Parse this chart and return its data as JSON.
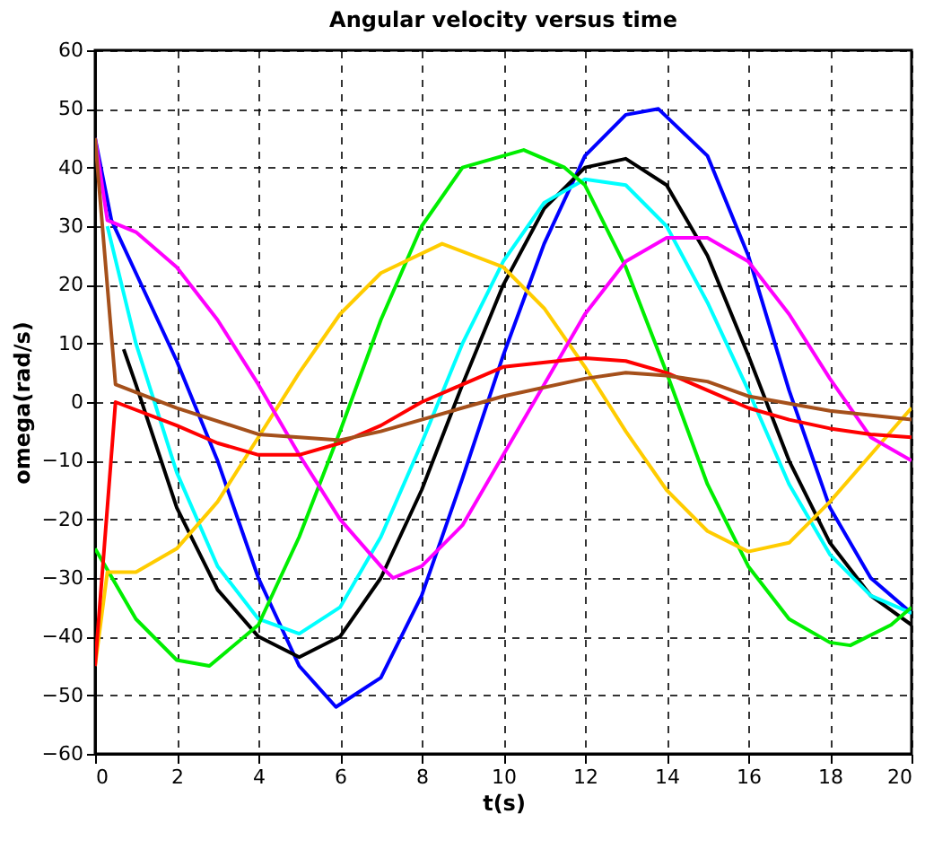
{
  "chart_data": {
    "type": "line",
    "title": "Angular velocity versus time",
    "xlabel": "t(s)",
    "ylabel": "omega(rad/s)",
    "xlim": [
      0,
      20
    ],
    "xticks": [
      0,
      2,
      4,
      6,
      8,
      10,
      12,
      14,
      16,
      18,
      20
    ],
    "ylim": [
      -60,
      60
    ],
    "yticks": [
      -60,
      -50,
      -40,
      -30,
      -20,
      -10,
      0,
      10,
      20,
      30,
      40,
      50,
      60
    ],
    "grid": true,
    "legend": false,
    "line_style": "solid",
    "marker": "none",
    "series": [
      {
        "color": "#0000ff",
        "x": [
          0,
          0.4,
          1,
          2,
          3,
          4,
          5,
          5.9,
          7,
          8,
          9,
          10,
          11,
          12,
          13,
          13.8,
          15,
          16,
          17,
          18,
          19,
          20
        ],
        "values": [
          45,
          31,
          22,
          7,
          -10,
          -30,
          -45,
          -52,
          -47,
          -33,
          -13,
          8,
          27,
          42,
          49,
          50,
          42,
          25,
          2,
          -18,
          -30,
          -36
        ]
      },
      {
        "color": "#000000",
        "x": [
          0.7,
          1,
          2,
          3,
          4,
          5,
          6,
          7,
          8,
          9,
          10,
          11,
          12,
          13,
          14,
          15,
          16,
          17,
          18,
          19,
          20
        ],
        "values": [
          9,
          3,
          -18,
          -32,
          -40,
          -43.5,
          -40,
          -30,
          -15,
          3,
          20,
          33,
          40,
          41.5,
          37,
          25,
          8,
          -10,
          -24,
          -33,
          -38
        ]
      },
      {
        "color": "#00ffff",
        "x": [
          0.3,
          1,
          2,
          3,
          4,
          5,
          6,
          7,
          8,
          9,
          10,
          11,
          12,
          13,
          14,
          15,
          16,
          17,
          18,
          19,
          20
        ],
        "values": [
          30,
          10,
          -12,
          -28,
          -37,
          -39.5,
          -35,
          -23,
          -7,
          10,
          24,
          34,
          38,
          37,
          30,
          17,
          2,
          -14,
          -26,
          -33,
          -36
        ]
      },
      {
        "color": "#00ee00",
        "x": [
          0,
          1,
          2,
          2.8,
          4,
          5,
          6,
          7,
          8,
          9,
          10.5,
          11.5,
          12,
          13,
          14,
          15,
          16,
          17,
          18,
          18.5,
          19.5,
          20
        ],
        "values": [
          -25,
          -37,
          -44,
          -45,
          -38,
          -23,
          -5,
          14,
          30,
          40,
          43,
          40,
          37,
          23,
          5,
          -14,
          -28,
          -37,
          -41,
          -41.5,
          -38,
          -35
        ]
      },
      {
        "color": "#ffcc00",
        "x": [
          0,
          0.3,
          1,
          2,
          3,
          4,
          5,
          6,
          7,
          8.5,
          10,
          11,
          12,
          13,
          14,
          15,
          16,
          17,
          18,
          19,
          20
        ],
        "values": [
          -45,
          -29,
          -29,
          -25,
          -17,
          -6,
          5,
          15,
          22,
          27,
          23,
          16,
          6,
          -5,
          -15,
          -22,
          -25.5,
          -24,
          -17,
          -9,
          -1
        ]
      },
      {
        "color": "#ff00ff",
        "x": [
          0,
          0.3,
          1,
          2,
          3,
          4,
          5,
          6,
          7,
          7.3,
          8,
          9,
          10,
          11,
          12,
          13,
          14,
          15,
          16,
          17,
          18,
          19,
          20
        ],
        "values": [
          45,
          31,
          29,
          23,
          14,
          3,
          -9,
          -20,
          -28,
          -30,
          -28,
          -21,
          -9,
          3,
          15,
          24,
          28,
          28,
          24,
          15,
          4,
          -6,
          -10
        ]
      },
      {
        "color": "#ff0000",
        "x": [
          0,
          0.5,
          2,
          3,
          4,
          5,
          6,
          7,
          8,
          9,
          10,
          12,
          13,
          14,
          15,
          16,
          17,
          18,
          19,
          20
        ],
        "values": [
          -45,
          0,
          -4,
          -7,
          -9,
          -9,
          -7,
          -4,
          0,
          3,
          6,
          7.5,
          7,
          5,
          2,
          -1,
          -3,
          -4.5,
          -5.5,
          -6
        ]
      },
      {
        "color": "#a5501b",
        "x": [
          0,
          0.5,
          2,
          4,
          6,
          7,
          8,
          10,
          12,
          13,
          14,
          15,
          16,
          18,
          20
        ],
        "values": [
          45,
          3,
          -1,
          -5.5,
          -6.5,
          -5,
          -3,
          1,
          4,
          5,
          4.5,
          3.5,
          1,
          -1.5,
          -3
        ]
      }
    ]
  }
}
